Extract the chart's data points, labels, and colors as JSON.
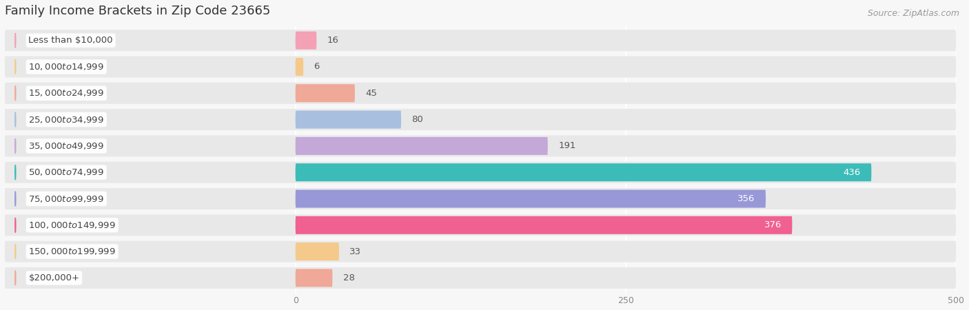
{
  "title": "Family Income Brackets in Zip Code 23665",
  "source": "Source: ZipAtlas.com",
  "categories": [
    "Less than $10,000",
    "$10,000 to $14,999",
    "$15,000 to $24,999",
    "$25,000 to $34,999",
    "$35,000 to $49,999",
    "$50,000 to $74,999",
    "$75,000 to $99,999",
    "$100,000 to $149,999",
    "$150,000 to $199,999",
    "$200,000+"
  ],
  "values": [
    16,
    6,
    45,
    80,
    191,
    436,
    356,
    376,
    33,
    28
  ],
  "bar_colors": [
    "#f4a0b5",
    "#f5c98a",
    "#f0a898",
    "#a8bfe0",
    "#c4a8d8",
    "#3bbcb8",
    "#9898d8",
    "#f06090",
    "#f5c98a",
    "#f0a898"
  ],
  "label_colors_white": [
    false,
    false,
    false,
    false,
    false,
    true,
    true,
    true,
    false,
    false
  ],
  "xlim": [
    0,
    500
  ],
  "xticks": [
    0,
    250,
    500
  ],
  "bg_color": "#f7f7f7",
  "row_bg_color": "#e8e8e8",
  "title_fontsize": 13,
  "source_fontsize": 9,
  "label_fontsize": 9.5,
  "value_fontsize": 9.5
}
